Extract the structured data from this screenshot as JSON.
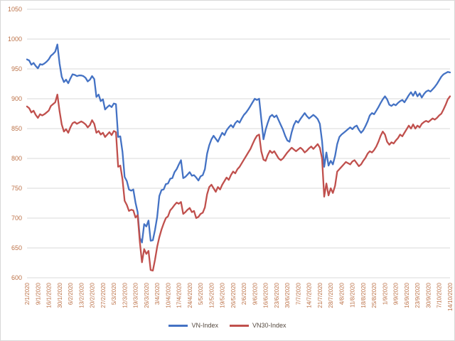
{
  "chart_data": {
    "type": "line",
    "title": "",
    "xlabel": "",
    "ylabel": "",
    "ylim": [
      600,
      1050
    ],
    "y_ticks": [
      1050,
      1000,
      950,
      900,
      850,
      800,
      750,
      700,
      650,
      600
    ],
    "grid": "horizontal",
    "gridline_color": "#d9d9d9",
    "tick_label_color": "#bc7248",
    "legend_position": "bottom",
    "legend_text_color": "#55493f",
    "label_every_n_points": 5,
    "x_labels": [
      "2/1/2020",
      "9/1/2020",
      "16/1/2020",
      "30/1/2020",
      "6/2/2020",
      "13/2/2020",
      "20/2/2020",
      "27/2/2020",
      "5/3/2020",
      "12/3/2020",
      "19/3/2020",
      "26/3/2020",
      "3/4/2020",
      "10/4/2020",
      "17/4/2020",
      "24/4/2020",
      "5/5/2020",
      "12/5/2020",
      "19/5/2020",
      "26/5/2020",
      "2/6/2020",
      "9/6/2020",
      "16/6/2020",
      "23/6/2020",
      "30/6/2020",
      "7/7/2020",
      "14/7/2020",
      "21/7/2020",
      "28/7/2020",
      "4/8/2020",
      "11/8/2020",
      "18/8/2020",
      "25/8/2020",
      "1/9/2020",
      "9/9/2020",
      "16/9/2020",
      "23/9/2020",
      "30/9/2020",
      "7/10/2020",
      "14/10/2020"
    ],
    "series": [
      {
        "name": "VN-Index",
        "color": "#4472c4",
        "values": [
          966,
          964,
          957,
          960,
          955,
          951,
          958,
          957,
          959,
          962,
          966,
          972,
          975,
          979,
          991,
          959,
          937,
          928,
          932,
          926,
          934,
          941,
          940,
          938,
          939,
          939,
          938,
          935,
          929,
          932,
          938,
          933,
          903,
          907,
          896,
          899,
          882,
          886,
          889,
          886,
          892,
          891,
          836,
          837,
          811,
          769,
          762,
          748,
          746,
          748,
          726,
          710,
          667,
          659,
          690,
          686,
          696,
          662,
          663,
          680,
          702,
          737,
          747,
          748,
          757,
          758,
          766,
          767,
          777,
          782,
          790,
          797,
          767,
          769,
          773,
          777,
          771,
          772,
          768,
          763,
          770,
          772,
          782,
          808,
          822,
          832,
          838,
          833,
          828,
          836,
          843,
          839,
          847,
          852,
          856,
          852,
          859,
          863,
          860,
          867,
          873,
          877,
          882,
          888,
          894,
          900,
          898,
          900,
          866,
          832,
          848,
          860,
          870,
          873,
          869,
          872,
          864,
          856,
          848,
          838,
          830,
          828,
          844,
          856,
          863,
          860,
          866,
          871,
          876,
          871,
          867,
          870,
          873,
          870,
          866,
          858,
          829,
          786,
          810,
          788,
          796,
          790,
          804,
          824,
          836,
          840,
          843,
          846,
          849,
          852,
          849,
          853,
          855,
          848,
          843,
          847,
          854,
          862,
          872,
          876,
          874,
          880,
          886,
          893,
          899,
          904,
          899,
          890,
          888,
          891,
          889,
          893,
          896,
          898,
          894,
          900,
          906,
          911,
          905,
          912,
          904,
          909,
          902,
          908,
          912,
          914,
          912,
          916,
          920,
          925,
          931,
          937,
          941,
          943,
          945,
          944
        ]
      },
      {
        "name": "VN30-Index",
        "color": "#c0504d",
        "values": [
          887,
          884,
          877,
          880,
          873,
          868,
          874,
          872,
          874,
          877,
          880,
          888,
          891,
          894,
          907,
          879,
          857,
          845,
          849,
          843,
          852,
          859,
          861,
          858,
          860,
          862,
          860,
          857,
          852,
          856,
          864,
          858,
          843,
          846,
          840,
          843,
          836,
          840,
          844,
          839,
          846,
          844,
          786,
          788,
          765,
          729,
          722,
          712,
          714,
          713,
          701,
          705,
          660,
          626,
          648,
          640,
          645,
          613,
          612,
          630,
          652,
          668,
          681,
          691,
          700,
          703,
          713,
          717,
          722,
          726,
          724,
          727,
          707,
          710,
          714,
          717,
          710,
          712,
          700,
          702,
          707,
          709,
          718,
          740,
          752,
          756,
          750,
          744,
          752,
          748,
          756,
          762,
          768,
          764,
          772,
          778,
          775,
          782,
          786,
          792,
          798,
          804,
          810,
          816,
          824,
          832,
          838,
          840,
          812,
          798,
          796,
          806,
          813,
          809,
          812,
          806,
          800,
          797,
          800,
          805,
          810,
          814,
          818,
          815,
          812,
          815,
          818,
          815,
          810,
          813,
          817,
          820,
          816,
          820,
          824,
          818,
          800,
          736,
          758,
          738,
          750,
          742,
          754,
          778,
          782,
          786,
          790,
          794,
          792,
          790,
          795,
          797,
          792,
          787,
          790,
          796,
          801,
          808,
          812,
          810,
          814,
          820,
          828,
          838,
          845,
          840,
          828,
          823,
          827,
          825,
          830,
          834,
          840,
          837,
          843,
          849,
          855,
          850,
          857,
          850,
          855,
          852,
          858,
          861,
          863,
          861,
          864,
          867,
          865,
          868,
          872,
          875,
          882,
          890,
          899,
          904
        ]
      }
    ]
  }
}
